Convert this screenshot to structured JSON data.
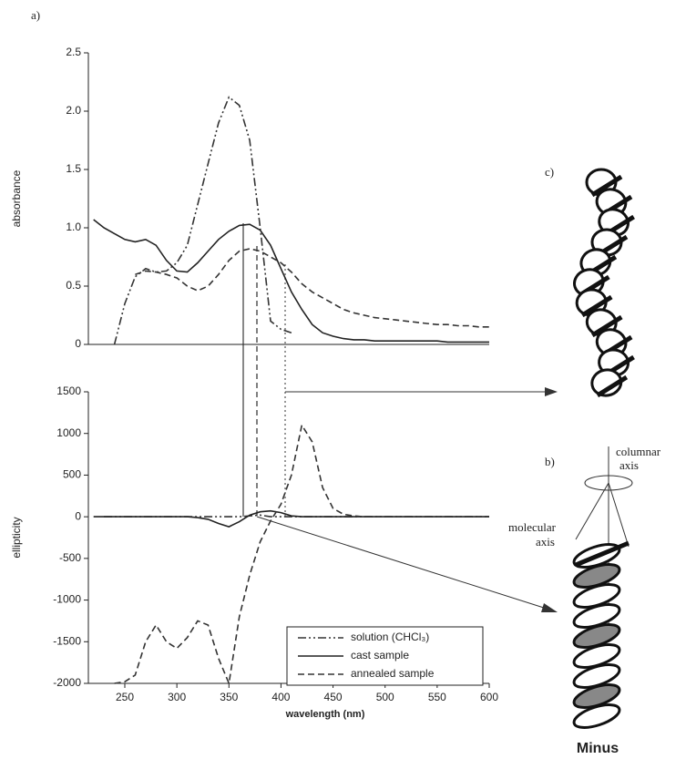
{
  "chart_data": [
    {
      "type": "line",
      "ylabel": "absorbance",
      "x": [
        220,
        230,
        240,
        250,
        260,
        270,
        280,
        290,
        300,
        310,
        320,
        330,
        340,
        350,
        360,
        370,
        380,
        390,
        400,
        410,
        420,
        430,
        440,
        450,
        460,
        470,
        480,
        490,
        500,
        510,
        520,
        530,
        540,
        550,
        560,
        570,
        580,
        590,
        600
      ],
      "xlim": [
        215,
        600
      ],
      "ylim": [
        0,
        2.5
      ],
      "yticks": [
        0,
        0.5,
        {
          "value": 1,
          "label": "1.0"
        },
        1.5,
        {
          "value": 2,
          "label": "2.0"
        },
        2.5
      ],
      "series": [
        {
          "color": "#333333",
          "style": "dash-dot",
          "values": [
            null,
            null,
            0,
            0.35,
            0.58,
            0.65,
            0.62,
            0.63,
            0.7,
            0.85,
            1.2,
            1.55,
            1.9,
            2.12,
            2.05,
            1.75,
            1.0,
            0.2,
            0.13,
            0.1,
            null,
            null,
            null,
            null,
            null,
            null,
            null,
            null,
            null,
            null,
            null,
            null,
            null,
            null,
            null,
            null,
            null,
            null,
            null
          ]
        },
        {
          "color": "#222222",
          "style": "solid",
          "values": [
            1.07,
            1.0,
            0.95,
            0.9,
            0.88,
            0.9,
            0.85,
            0.72,
            0.63,
            0.62,
            0.7,
            0.8,
            0.9,
            0.97,
            1.02,
            1.03,
            0.98,
            0.85,
            0.65,
            0.45,
            0.3,
            0.17,
            0.1,
            0.07,
            0.05,
            0.04,
            0.04,
            0.03,
            0.03,
            0.03,
            0.03,
            0.03,
            0.03,
            0.03,
            0.02,
            0.02,
            0.02,
            0.02,
            0.02
          ]
        },
        {
          "color": "#333333",
          "style": "dashed",
          "values": [
            null,
            null,
            null,
            null,
            0.6,
            0.63,
            0.62,
            0.6,
            0.57,
            0.5,
            0.46,
            0.5,
            0.6,
            0.72,
            0.8,
            0.82,
            0.8,
            0.75,
            0.7,
            0.62,
            0.52,
            0.45,
            0.4,
            0.35,
            0.3,
            0.27,
            0.25,
            0.23,
            0.22,
            0.21,
            0.2,
            0.19,
            0.18,
            0.17,
            0.17,
            0.16,
            0.16,
            0.15,
            0.15
          ]
        }
      ]
    },
    {
      "type": "line",
      "ylabel": "ellipticity",
      "xlabel": "wavelength (nm)",
      "x": [
        220,
        230,
        240,
        250,
        260,
        270,
        280,
        290,
        300,
        310,
        320,
        330,
        340,
        350,
        360,
        370,
        380,
        390,
        400,
        410,
        420,
        430,
        440,
        450,
        460,
        470,
        480,
        490,
        500,
        510,
        520,
        530,
        540,
        550,
        560,
        570,
        580,
        590,
        600
      ],
      "xlim": [
        215,
        600
      ],
      "ylim": [
        -2000,
        1500
      ],
      "xticks": [
        250,
        300,
        350,
        400,
        450,
        500,
        550,
        600
      ],
      "yticks": [
        1500,
        1000,
        500,
        0,
        -500,
        -1000,
        -1500,
        -2000
      ],
      "legend": "lower right",
      "series": [
        {
          "name": "solution (CHCl₃)",
          "color": "#333333",
          "style": "dash-dot",
          "values": [
            null,
            0,
            0,
            0,
            0,
            0,
            0,
            0,
            0,
            0,
            0,
            0,
            0,
            0,
            0,
            10,
            20,
            0,
            0,
            0,
            0,
            0,
            0,
            0,
            0,
            0,
            0,
            0,
            0,
            0,
            0,
            0,
            0,
            0,
            0,
            0,
            0,
            0,
            0
          ]
        },
        {
          "name": "cast sample",
          "color": "#222222",
          "style": "solid",
          "values": [
            0,
            0,
            0,
            0,
            0,
            0,
            0,
            0,
            0,
            0,
            -10,
            -30,
            -80,
            -120,
            -60,
            20,
            60,
            70,
            50,
            10,
            0,
            0,
            0,
            0,
            0,
            0,
            0,
            0,
            0,
            0,
            0,
            0,
            0,
            0,
            0,
            0,
            0,
            0,
            0
          ]
        },
        {
          "name": "annealed sample",
          "color": "#333333",
          "style": "dashed",
          "values": [
            null,
            null,
            -2000,
            -1980,
            -1900,
            -1500,
            -1300,
            -1500,
            -1580,
            -1450,
            -1250,
            -1300,
            -1700,
            -2000,
            -1200,
            -700,
            -300,
            -50,
            150,
            500,
            1100,
            900,
            350,
            100,
            30,
            10,
            0,
            0,
            0,
            0,
            0,
            0,
            0,
            0,
            0,
            0,
            0,
            0,
            0
          ]
        }
      ]
    }
  ],
  "labels": {
    "a": "a)",
    "b": "b)",
    "c": "c)",
    "columnar": "columnar",
    "axis": "axis",
    "molecular": "molecular",
    "molecular_axis": "axis",
    "minus": "Minus"
  }
}
